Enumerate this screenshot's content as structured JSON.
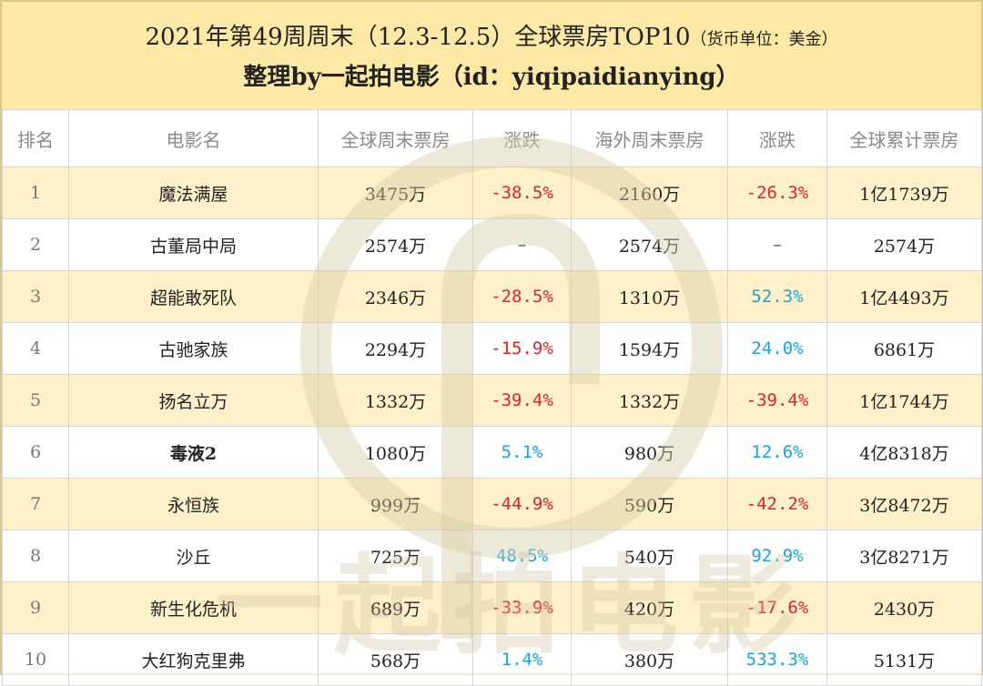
{
  "header": {
    "title_main": "2021年第49周周末（12.3-12.5）全球票房TOP10",
    "title_unit": "（货币单位：美金）",
    "subtitle": "整理by一起拍电影（id：yiqipaidianying）"
  },
  "watermark": {
    "text": "一起拍电影"
  },
  "table": {
    "columns": [
      "排名",
      "电影名",
      "全球周末票房",
      "涨跌",
      "海外周末票房",
      "涨跌",
      "全球累计票房"
    ],
    "rows": [
      {
        "rank": "1",
        "title": "魔法满屋",
        "global_weekend": "3475万",
        "global_change": "-38.5%",
        "global_change_dir": "neg",
        "overseas_weekend": "2160万",
        "overseas_change": "-26.3%",
        "overseas_change_dir": "neg",
        "cumulative": "1亿1739万"
      },
      {
        "rank": "2",
        "title": "古董局中局",
        "global_weekend": "2574万",
        "global_change": "–",
        "global_change_dir": "dash",
        "overseas_weekend": "2574万",
        "overseas_change": "–",
        "overseas_change_dir": "dash",
        "cumulative": "2574万"
      },
      {
        "rank": "3",
        "title": "超能敢死队",
        "global_weekend": "2346万",
        "global_change": "-28.5%",
        "global_change_dir": "neg",
        "overseas_weekend": "1310万",
        "overseas_change": "52.3%",
        "overseas_change_dir": "pos",
        "cumulative": "1亿4493万"
      },
      {
        "rank": "4",
        "title": "古驰家族",
        "global_weekend": "2294万",
        "global_change": "-15.9%",
        "global_change_dir": "neg",
        "overseas_weekend": "1594万",
        "overseas_change": "24.0%",
        "overseas_change_dir": "pos",
        "cumulative": "6861万"
      },
      {
        "rank": "5",
        "title": "扬名立万",
        "global_weekend": "1332万",
        "global_change": "-39.4%",
        "global_change_dir": "neg",
        "overseas_weekend": "1332万",
        "overseas_change": "-39.4%",
        "overseas_change_dir": "neg",
        "cumulative": "1亿1744万"
      },
      {
        "rank": "6",
        "title": "毒液2",
        "global_weekend": "1080万",
        "global_change": "5.1%",
        "global_change_dir": "pos",
        "overseas_weekend": "980万",
        "overseas_change": "12.6%",
        "overseas_change_dir": "pos",
        "cumulative": "4亿8318万",
        "title_bold": true
      },
      {
        "rank": "7",
        "title": "永恒族",
        "global_weekend": "999万",
        "global_change": "-44.9%",
        "global_change_dir": "neg",
        "overseas_weekend": "590万",
        "overseas_change": "-42.2%",
        "overseas_change_dir": "neg",
        "cumulative": "3亿8472万"
      },
      {
        "rank": "8",
        "title": "沙丘",
        "global_weekend": "725万",
        "global_change": "48.5%",
        "global_change_dir": "pos",
        "overseas_weekend": "540万",
        "overseas_change": "92.9%",
        "overseas_change_dir": "pos",
        "cumulative": "3亿8271万"
      },
      {
        "rank": "9",
        "title": "新生化危机",
        "global_weekend": "689万",
        "global_change": "-33.9%",
        "global_change_dir": "neg",
        "overseas_weekend": "420万",
        "overseas_change": "-17.6%",
        "overseas_change_dir": "neg",
        "cumulative": "2430万"
      },
      {
        "rank": "10",
        "title": "大红狗克里弗",
        "global_weekend": "568万",
        "global_change": "1.4%",
        "global_change_dir": "pos",
        "overseas_weekend": "380万",
        "overseas_change": "533.3%",
        "overseas_change_dir": "pos",
        "cumulative": "5131万"
      }
    ]
  },
  "colors": {
    "header_bg": "#fde9a6",
    "odd_row_bg": "#fdecb8",
    "negative": "#e8202a",
    "positive": "#1ba3e0",
    "header_text": "#8a8a8a"
  }
}
